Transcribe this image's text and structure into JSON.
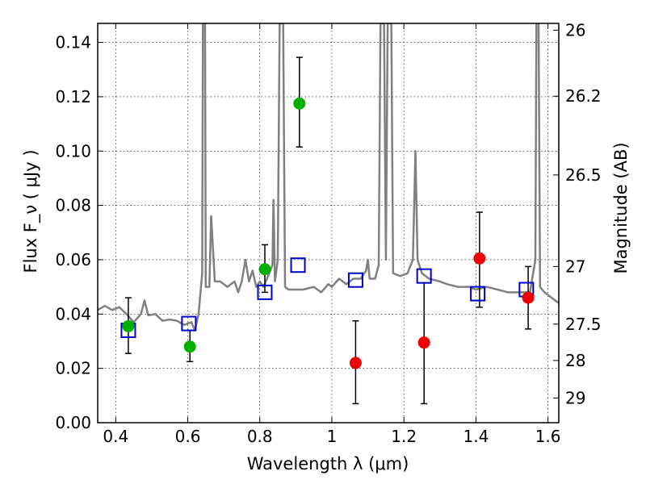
{
  "chart_data": {
    "type": "scatter",
    "xlabel": "Wavelength  λ (μm)",
    "ylabel": "Flux  F_ν  ( μJy )",
    "y2label": "Magnitude (AB)",
    "xlim": [
      0.35,
      1.63
    ],
    "ylim": [
      0.0,
      0.147
    ],
    "x_ticks": [
      0.4,
      0.6,
      0.8,
      1.0,
      1.2,
      1.4,
      1.6
    ],
    "x_tick_labels": [
      "0.4",
      "0.6",
      "0.8",
      "1",
      "1.2",
      "1.4",
      "1.6"
    ],
    "y_ticks": [
      0.0,
      0.02,
      0.04,
      0.06,
      0.08,
      0.1,
      0.12,
      0.14
    ],
    "y_tick_labels": [
      "0.00",
      "0.02",
      "0.04",
      "0.06",
      "0.08",
      "0.10",
      "0.12",
      "0.14"
    ],
    "y2_ticks": [
      {
        "label": "26",
        "flux": 0.1445
      },
      {
        "label": "26.2",
        "flux": 0.1202
      },
      {
        "label": "26.5",
        "flux": 0.0912
      },
      {
        "label": "27",
        "flux": 0.0575
      },
      {
        "label": "27.5",
        "flux": 0.0363
      },
      {
        "label": "28",
        "flux": 0.0229
      },
      {
        "label": "29",
        "flux": 0.0091
      }
    ],
    "grid": true,
    "colors": {
      "green": "#00b000",
      "red": "#ee0000",
      "blue_square": "#0000cc",
      "spectrum": "#808080",
      "errorbar": "#000000"
    },
    "series": [
      {
        "marker": "square",
        "color": "#0000cc",
        "points": [
          {
            "x": 0.435,
            "y": 0.034
          },
          {
            "x": 0.603,
            "y": 0.0365
          },
          {
            "x": 0.814,
            "y": 0.048
          },
          {
            "x": 0.906,
            "y": 0.058
          },
          {
            "x": 1.066,
            "y": 0.0525
          },
          {
            "x": 1.256,
            "y": 0.054
          },
          {
            "x": 1.405,
            "y": 0.0475
          },
          {
            "x": 1.54,
            "y": 0.049
          }
        ]
      },
      {
        "marker": "circle",
        "color": "#00b000",
        "points": [
          {
            "x": 0.435,
            "y": 0.0355,
            "err": [
              0.0255,
              0.046
            ]
          },
          {
            "x": 0.606,
            "y": 0.028,
            "err": [
              0.0225,
              0.034
            ]
          },
          {
            "x": 0.814,
            "y": 0.0565,
            "err": [
              0.048,
              0.0655
            ]
          },
          {
            "x": 0.91,
            "y": 0.1175,
            "err": [
              0.1015,
              0.1345
            ]
          }
        ]
      },
      {
        "marker": "circle",
        "color": "#ee0000",
        "points": [
          {
            "x": 1.066,
            "y": 0.022,
            "err": [
              0.007,
              0.0375
            ]
          },
          {
            "x": 1.256,
            "y": 0.0295,
            "err": [
              0.007,
              0.0515
            ]
          },
          {
            "x": 1.41,
            "y": 0.0605,
            "err": [
              0.0425,
              0.0775
            ]
          },
          {
            "x": 1.545,
            "y": 0.046,
            "err": [
              0.0345,
              0.0575
            ]
          }
        ]
      }
    ],
    "spectrum": {
      "color": "#808080",
      "points": [
        [
          0.35,
          0.0415
        ],
        [
          0.37,
          0.043
        ],
        [
          0.39,
          0.0415
        ],
        [
          0.41,
          0.0425
        ],
        [
          0.43,
          0.04
        ],
        [
          0.45,
          0.037
        ],
        [
          0.47,
          0.04
        ],
        [
          0.48,
          0.045
        ],
        [
          0.49,
          0.0395
        ],
        [
          0.51,
          0.04
        ],
        [
          0.53,
          0.0375
        ],
        [
          0.55,
          0.038
        ],
        [
          0.57,
          0.0375
        ],
        [
          0.59,
          0.036
        ],
        [
          0.61,
          0.037
        ],
        [
          0.62,
          0.034
        ],
        [
          0.63,
          0.04
        ],
        [
          0.64,
          0.055
        ],
        [
          0.642,
          0.147
        ],
        [
          0.648,
          0.147
        ],
        [
          0.65,
          0.05
        ],
        [
          0.66,
          0.05
        ],
        [
          0.665,
          0.076
        ],
        [
          0.675,
          0.052
        ],
        [
          0.69,
          0.052
        ],
        [
          0.71,
          0.05
        ],
        [
          0.73,
          0.052
        ],
        [
          0.74,
          0.048
        ],
        [
          0.75,
          0.052
        ],
        [
          0.76,
          0.06
        ],
        [
          0.77,
          0.052
        ],
        [
          0.78,
          0.056
        ],
        [
          0.79,
          0.05
        ],
        [
          0.8,
          0.052
        ],
        [
          0.81,
          0.05
        ],
        [
          0.82,
          0.053
        ],
        [
          0.835,
          0.058
        ],
        [
          0.838,
          0.082
        ],
        [
          0.842,
          0.052
        ],
        [
          0.85,
          0.06
        ],
        [
          0.855,
          0.147
        ],
        [
          0.865,
          0.147
        ],
        [
          0.87,
          0.05
        ],
        [
          0.88,
          0.049
        ],
        [
          0.9,
          0.049
        ],
        [
          0.92,
          0.049
        ],
        [
          0.95,
          0.05
        ],
        [
          0.97,
          0.048
        ],
        [
          0.99,
          0.051
        ],
        [
          1.0,
          0.05
        ],
        [
          1.02,
          0.053
        ],
        [
          1.04,
          0.051
        ],
        [
          1.06,
          0.053
        ],
        [
          1.08,
          0.053
        ],
        [
          1.095,
          0.056
        ],
        [
          1.1,
          0.06
        ],
        [
          1.105,
          0.053
        ],
        [
          1.12,
          0.053
        ],
        [
          1.13,
          0.058
        ],
        [
          1.135,
          0.147
        ],
        [
          1.145,
          0.147
        ],
        [
          1.15,
          0.06
        ],
        [
          1.155,
          0.147
        ],
        [
          1.165,
          0.147
        ],
        [
          1.17,
          0.055
        ],
        [
          1.19,
          0.054
        ],
        [
          1.21,
          0.055
        ],
        [
          1.225,
          0.06
        ],
        [
          1.232,
          0.1
        ],
        [
          1.238,
          0.06
        ],
        [
          1.25,
          0.055
        ],
        [
          1.27,
          0.053
        ],
        [
          1.3,
          0.052
        ],
        [
          1.32,
          0.051
        ],
        [
          1.35,
          0.05
        ],
        [
          1.38,
          0.05
        ],
        [
          1.4,
          0.049
        ],
        [
          1.43,
          0.05
        ],
        [
          1.46,
          0.049
        ],
        [
          1.49,
          0.048
        ],
        [
          1.52,
          0.048
        ],
        [
          1.55,
          0.048
        ],
        [
          1.565,
          0.06
        ],
        [
          1.568,
          0.147
        ],
        [
          1.574,
          0.147
        ],
        [
          1.578,
          0.05
        ],
        [
          1.59,
          0.048
        ],
        [
          1.61,
          0.046
        ],
        [
          1.63,
          0.044
        ]
      ]
    }
  }
}
